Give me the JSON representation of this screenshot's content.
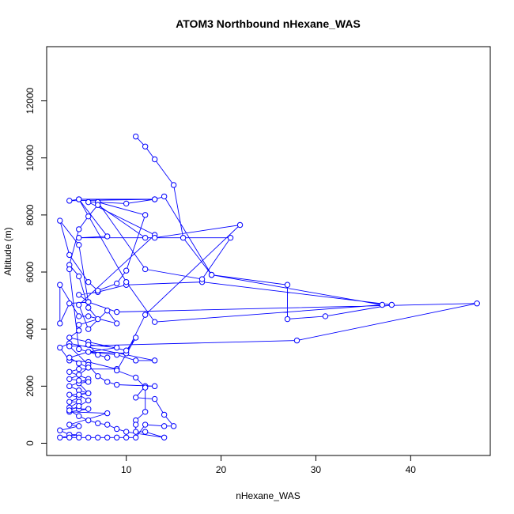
{
  "chart_data": {
    "type": "line",
    "title": "ATOM3 Northbound nHexane_WAS",
    "xlabel": "nHexane_WAS",
    "ylabel": "Altitude (m)",
    "xlim": [
      1.6,
      48.4
    ],
    "ylim": [
      -430,
      13900
    ],
    "xticks": [
      10,
      20,
      30,
      40
    ],
    "yticks": [
      0,
      2000,
      4000,
      6000,
      8000,
      10000,
      12000
    ],
    "grid": false,
    "legend": "none",
    "series_color": "#0000ff",
    "series": [
      {
        "values": [
          [
            11,
            10750
          ],
          [
            12,
            10400
          ],
          [
            13,
            9950
          ],
          [
            15,
            9050
          ],
          [
            16,
            7200
          ],
          [
            19,
            5900
          ],
          [
            27,
            5550
          ],
          [
            27,
            4350
          ],
          [
            31,
            4450
          ],
          [
            38,
            4850
          ],
          [
            18,
            5650
          ],
          [
            10,
            5550
          ],
          [
            7,
            5300
          ],
          [
            5,
            5200
          ],
          [
            6,
            4950
          ],
          [
            4,
            4900
          ],
          [
            3,
            4200
          ],
          [
            3,
            5550
          ],
          [
            5,
            4450
          ],
          [
            6,
            4450
          ],
          [
            9,
            4200
          ],
          [
            8,
            4650
          ],
          [
            6,
            4000
          ],
          [
            5,
            4850
          ],
          [
            13,
            7300
          ],
          [
            6,
            8450
          ],
          [
            7,
            8450
          ],
          [
            10,
            8400
          ],
          [
            13,
            8550
          ],
          [
            14,
            8650
          ],
          [
            19,
            5900
          ],
          [
            37,
            4850
          ],
          [
            13,
            4250
          ],
          [
            10,
            5650
          ],
          [
            5,
            8550
          ],
          [
            4,
            8500
          ],
          [
            13,
            8550
          ],
          [
            5,
            8550
          ],
          [
            8,
            7250
          ],
          [
            5,
            7200
          ],
          [
            13,
            7200
          ],
          [
            22,
            7650
          ],
          [
            12,
            4500
          ],
          [
            10,
            3150
          ],
          [
            6,
            3200
          ],
          [
            9,
            3100
          ],
          [
            11,
            2900
          ],
          [
            13,
            2900
          ],
          [
            4,
            3500
          ],
          [
            3,
            3350
          ],
          [
            4,
            2900
          ],
          [
            6,
            2850
          ],
          [
            9,
            2600
          ],
          [
            5,
            2600
          ],
          [
            4,
            2500
          ],
          [
            6,
            2250
          ],
          [
            4,
            2000
          ],
          [
            5,
            1850
          ],
          [
            6,
            1750
          ],
          [
            4,
            1700
          ],
          [
            5,
            1600
          ],
          [
            4,
            1450
          ],
          [
            5,
            1450
          ],
          [
            4,
            1250
          ],
          [
            5,
            1200
          ],
          [
            6,
            1200
          ],
          [
            4,
            1100
          ],
          [
            8,
            1050
          ],
          [
            4,
            650
          ],
          [
            5,
            600
          ],
          [
            3,
            450
          ],
          [
            4,
            300
          ],
          [
            5,
            300
          ],
          [
            3,
            200
          ],
          [
            4,
            200
          ],
          [
            5,
            200
          ],
          [
            6,
            200
          ],
          [
            7,
            200
          ],
          [
            8,
            200
          ],
          [
            9,
            200
          ],
          [
            10,
            200
          ],
          [
            11,
            200
          ],
          [
            12,
            650
          ],
          [
            14,
            600
          ],
          [
            15,
            600
          ],
          [
            14,
            1000
          ],
          [
            13,
            1550
          ],
          [
            11,
            1600
          ],
          [
            12,
            2000
          ],
          [
            13,
            2000
          ],
          [
            9,
            2050
          ],
          [
            8,
            2150
          ],
          [
            7,
            2350
          ],
          [
            6,
            2750
          ],
          [
            4,
            3400
          ],
          [
            28,
            3600
          ],
          [
            47,
            4900
          ],
          [
            9,
            4600
          ],
          [
            6,
            4950
          ],
          [
            5,
            6950
          ],
          [
            3,
            7800
          ],
          [
            4,
            6600
          ],
          [
            6,
            5650
          ],
          [
            7,
            5350
          ],
          [
            9,
            5600
          ],
          [
            10,
            6050
          ],
          [
            12,
            8000
          ],
          [
            7,
            8450
          ],
          [
            12,
            6100
          ],
          [
            18,
            5750
          ],
          [
            21,
            7200
          ],
          [
            12,
            7200
          ],
          [
            7,
            8350
          ],
          [
            6,
            7950
          ],
          [
            5,
            7500
          ],
          [
            4,
            6250
          ],
          [
            5,
            5850
          ],
          [
            6,
            4750
          ],
          [
            7,
            4350
          ],
          [
            5,
            4150
          ],
          [
            5,
            3950
          ],
          [
            4,
            3700
          ],
          [
            6,
            3550
          ],
          [
            10,
            3250
          ],
          [
            11,
            3700
          ],
          [
            9,
            2550
          ],
          [
            11,
            2300
          ],
          [
            12,
            1950
          ],
          [
            12,
            1100
          ],
          [
            11,
            800
          ],
          [
            11,
            650
          ],
          [
            11,
            400
          ],
          [
            12,
            400
          ],
          [
            14,
            200
          ],
          [
            10,
            400
          ],
          [
            9,
            500
          ],
          [
            8,
            650
          ],
          [
            7,
            700
          ],
          [
            6,
            800
          ],
          [
            5,
            950
          ],
          [
            4,
            1150
          ],
          [
            5,
            1300
          ],
          [
            6,
            1500
          ],
          [
            5,
            1700
          ],
          [
            6,
            1750
          ],
          [
            5,
            2100
          ],
          [
            6,
            2150
          ],
          [
            5,
            2200
          ],
          [
            4,
            2250
          ],
          [
            5,
            2400
          ],
          [
            6,
            2650
          ],
          [
            5,
            2800
          ],
          [
            4,
            3000
          ],
          [
            6,
            3200
          ],
          [
            9,
            3350
          ],
          [
            6,
            3450
          ],
          [
            7,
            3100
          ],
          [
            8,
            3000
          ],
          [
            5,
            3300
          ],
          [
            4,
            6100
          ]
        ]
      }
    ]
  }
}
